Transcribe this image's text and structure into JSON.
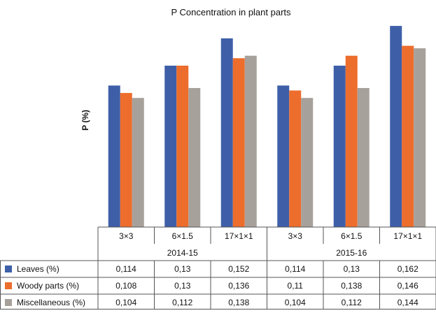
{
  "chart_data": {
    "type": "bar",
    "title": "P  Concentration in plant parts",
    "ylabel": "P (%)",
    "xlabel": "",
    "ylim": [
      0,
      0.166
    ],
    "grid": false,
    "legend": "table-rows",
    "groups": [
      {
        "label": "2014-15",
        "categories": [
          "3×3",
          "6×1.5",
          "17×1×1"
        ]
      },
      {
        "label": "2015-16",
        "categories": [
          "3×3",
          "6×1.5",
          "17×1×1"
        ]
      }
    ],
    "categories": [
      "3×3",
      "6×1.5",
      "17×1×1",
      "3×3",
      "6×1.5",
      "17×1×1"
    ],
    "series": [
      {
        "name": "Leaves  (%)",
        "color": "#3e5fa8",
        "values": [
          0.114,
          0.13,
          0.152,
          0.114,
          0.13,
          0.162
        ],
        "labels": [
          "0,114",
          "0,13",
          "0,152",
          "0,114",
          "0,13",
          "0,162"
        ]
      },
      {
        "name": "Woody parts  (%)",
        "color": "#ed6d2c",
        "values": [
          0.108,
          0.13,
          0.136,
          0.11,
          0.138,
          0.146
        ],
        "labels": [
          "0,108",
          "0,13",
          "0,136",
          "0,11",
          "0,138",
          "0,146"
        ]
      },
      {
        "name": "Miscellaneous  (%)",
        "color": "#a7a19c",
        "values": [
          0.104,
          0.112,
          0.138,
          0.104,
          0.112,
          0.144
        ],
        "labels": [
          "0,104",
          "0,112",
          "0,138",
          "0,104",
          "0,112",
          "0,144"
        ]
      }
    ]
  }
}
